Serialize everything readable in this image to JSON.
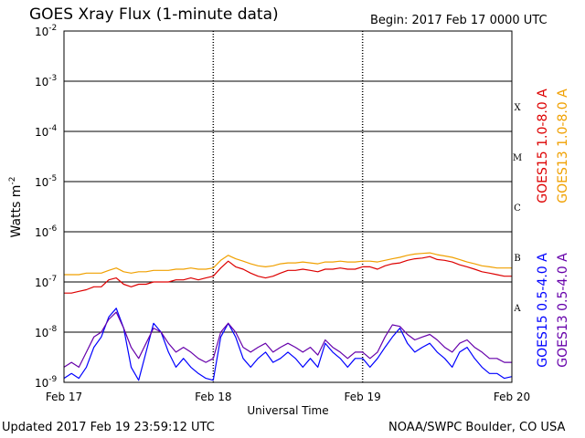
{
  "header": {
    "title": "GOES Xray Flux (1-minute data)",
    "begin": "Begin:  2017 Feb 17 0000 UTC"
  },
  "footer": {
    "updated": "Updated 2017 Feb 19 23:59:12 UTC",
    "credit": "NOAA/SWPC Boulder, CO USA"
  },
  "colors": {
    "goes15_long": "#dd0000",
    "goes13_long": "#f0a000",
    "goes15_short": "#0000ff",
    "goes13_short": "#6600aa"
  },
  "chart_data": {
    "type": "line",
    "x_ticks": [
      "Feb 17",
      "Feb 18",
      "Feb 19",
      "Feb 20"
    ],
    "xlabel": "Universal Time",
    "ylabel": "Watts m",
    "ylabel_sup": "-2",
    "y_scale": "log",
    "ylim": [
      1e-09,
      0.01
    ],
    "y_ticks": [
      {
        "base": "10",
        "exp": "-2"
      },
      {
        "base": "10",
        "exp": "-3"
      },
      {
        "base": "10",
        "exp": "-4"
      },
      {
        "base": "10",
        "exp": "-5"
      },
      {
        "base": "10",
        "exp": "-6"
      },
      {
        "base": "10",
        "exp": "-7"
      },
      {
        "base": "10",
        "exp": "-8"
      },
      {
        "base": "10",
        "exp": "-9"
      }
    ],
    "flare_classes": [
      "X",
      "M",
      "C",
      "B",
      "A"
    ],
    "series": [
      {
        "name": "GOES15 1.0-8.0 A",
        "color": "#dd0000",
        "x": [
          0,
          0.05,
          0.1,
          0.15,
          0.2,
          0.25,
          0.3,
          0.35,
          0.4,
          0.45,
          0.5,
          0.55,
          0.6,
          0.65,
          0.7,
          0.75,
          0.8,
          0.85,
          0.9,
          0.95,
          1.0,
          1.05,
          1.1,
          1.15,
          1.2,
          1.25,
          1.3,
          1.35,
          1.4,
          1.45,
          1.5,
          1.55,
          1.6,
          1.65,
          1.7,
          1.75,
          1.8,
          1.85,
          1.9,
          1.95,
          2.0,
          2.05,
          2.1,
          2.15,
          2.2,
          2.25,
          2.3,
          2.35,
          2.4,
          2.45,
          2.5,
          2.55,
          2.6,
          2.65,
          2.7,
          2.75,
          2.8,
          2.85,
          2.9,
          2.95,
          3.0
        ],
        "y": [
          6e-08,
          6e-08,
          6.5e-08,
          7e-08,
          8e-08,
          8e-08,
          1.1e-07,
          1.2e-07,
          9e-08,
          8e-08,
          9e-08,
          9e-08,
          1e-07,
          1e-07,
          1e-07,
          1.1e-07,
          1.1e-07,
          1.2e-07,
          1.1e-07,
          1.2e-07,
          1.3e-07,
          1.9e-07,
          2.6e-07,
          2e-07,
          1.8e-07,
          1.5e-07,
          1.3e-07,
          1.2e-07,
          1.3e-07,
          1.5e-07,
          1.7e-07,
          1.7e-07,
          1.8e-07,
          1.7e-07,
          1.6e-07,
          1.8e-07,
          1.8e-07,
          1.9e-07,
          1.8e-07,
          1.8e-07,
          2e-07,
          2e-07,
          1.8e-07,
          2.1e-07,
          2.3e-07,
          2.4e-07,
          2.7e-07,
          2.9e-07,
          3e-07,
          3.2e-07,
          2.8e-07,
          2.7e-07,
          2.5e-07,
          2.2e-07,
          2e-07,
          1.8e-07,
          1.6e-07,
          1.5e-07,
          1.4e-07,
          1.3e-07,
          1.3e-07
        ]
      },
      {
        "name": "GOES13 1.0-8.0 A",
        "color": "#f0a000",
        "x": [
          0,
          0.05,
          0.1,
          0.15,
          0.2,
          0.25,
          0.3,
          0.35,
          0.4,
          0.45,
          0.5,
          0.55,
          0.6,
          0.65,
          0.7,
          0.75,
          0.8,
          0.85,
          0.9,
          0.95,
          1.0,
          1.05,
          1.1,
          1.15,
          1.2,
          1.25,
          1.3,
          1.35,
          1.4,
          1.45,
          1.5,
          1.55,
          1.6,
          1.65,
          1.7,
          1.75,
          1.8,
          1.85,
          1.9,
          1.95,
          2.0,
          2.05,
          2.1,
          2.15,
          2.2,
          2.25,
          2.3,
          2.35,
          2.4,
          2.45,
          2.5,
          2.55,
          2.6,
          2.65,
          2.7,
          2.75,
          2.8,
          2.85,
          2.9,
          2.95,
          3.0
        ],
        "y": [
          1.4e-07,
          1.4e-07,
          1.4e-07,
          1.5e-07,
          1.5e-07,
          1.5e-07,
          1.7e-07,
          1.9e-07,
          1.6e-07,
          1.5e-07,
          1.6e-07,
          1.6e-07,
          1.7e-07,
          1.7e-07,
          1.7e-07,
          1.8e-07,
          1.8e-07,
          1.9e-07,
          1.8e-07,
          1.8e-07,
          1.9e-07,
          2.7e-07,
          3.4e-07,
          2.9e-07,
          2.6e-07,
          2.3e-07,
          2.1e-07,
          2e-07,
          2.1e-07,
          2.3e-07,
          2.4e-07,
          2.4e-07,
          2.5e-07,
          2.4e-07,
          2.3e-07,
          2.5e-07,
          2.5e-07,
          2.6e-07,
          2.5e-07,
          2.5e-07,
          2.6e-07,
          2.6e-07,
          2.5e-07,
          2.7e-07,
          2.9e-07,
          3.1e-07,
          3.4e-07,
          3.6e-07,
          3.7e-07,
          3.8e-07,
          3.5e-07,
          3.3e-07,
          3.1e-07,
          2.8e-07,
          2.5e-07,
          2.3e-07,
          2.1e-07,
          2e-07,
          1.9e-07,
          1.9e-07,
          1.9e-07
        ]
      },
      {
        "name": "GOES15 0.5-4.0 A",
        "color": "#0000ff",
        "x": [
          0,
          0.05,
          0.1,
          0.15,
          0.2,
          0.25,
          0.3,
          0.35,
          0.4,
          0.45,
          0.5,
          0.55,
          0.6,
          0.65,
          0.7,
          0.75,
          0.8,
          0.85,
          0.9,
          0.95,
          1.0,
          1.05,
          1.1,
          1.15,
          1.2,
          1.25,
          1.3,
          1.35,
          1.4,
          1.45,
          1.5,
          1.55,
          1.6,
          1.65,
          1.7,
          1.75,
          1.8,
          1.85,
          1.9,
          1.95,
          2.0,
          2.05,
          2.1,
          2.15,
          2.2,
          2.25,
          2.3,
          2.35,
          2.4,
          2.45,
          2.5,
          2.55,
          2.6,
          2.65,
          2.7,
          2.75,
          2.8,
          2.85,
          2.9,
          2.95,
          3.0
        ],
        "y": [
          1.2e-09,
          1.5e-09,
          1.2e-09,
          2e-09,
          5e-09,
          8e-09,
          2e-08,
          3e-08,
          1.2e-08,
          2e-09,
          1.1e-09,
          4e-09,
          1.5e-08,
          1e-08,
          4e-09,
          2e-09,
          3e-09,
          2e-09,
          1.5e-09,
          1.2e-09,
          1.1e-09,
          8e-09,
          1.5e-08,
          8e-09,
          3e-09,
          2e-09,
          3e-09,
          4e-09,
          2.5e-09,
          3e-09,
          4e-09,
          3e-09,
          2e-09,
          3e-09,
          2e-09,
          6e-09,
          4e-09,
          3e-09,
          2e-09,
          3e-09,
          3e-09,
          2e-09,
          3e-09,
          5e-09,
          8e-09,
          1.2e-08,
          6e-09,
          4e-09,
          5e-09,
          6e-09,
          4e-09,
          3e-09,
          2e-09,
          4e-09,
          5e-09,
          3e-09,
          2e-09,
          1.5e-09,
          1.5e-09,
          1.2e-09,
          1.3e-09
        ]
      },
      {
        "name": "GOES13 0.5-4.0 A",
        "color": "#6600aa",
        "x": [
          0,
          0.05,
          0.1,
          0.15,
          0.2,
          0.25,
          0.3,
          0.35,
          0.4,
          0.45,
          0.5,
          0.55,
          0.6,
          0.65,
          0.7,
          0.75,
          0.8,
          0.85,
          0.9,
          0.95,
          1.0,
          1.05,
          1.1,
          1.15,
          1.2,
          1.25,
          1.3,
          1.35,
          1.4,
          1.45,
          1.5,
          1.55,
          1.6,
          1.65,
          1.7,
          1.75,
          1.8,
          1.85,
          1.9,
          1.95,
          2.0,
          2.05,
          2.1,
          2.15,
          2.2,
          2.25,
          2.3,
          2.35,
          2.4,
          2.45,
          2.5,
          2.55,
          2.6,
          2.65,
          2.7,
          2.75,
          2.8,
          2.85,
          2.9,
          2.95,
          3.0
        ],
        "y": [
          2e-09,
          2.5e-09,
          2e-09,
          4e-09,
          8e-09,
          1e-08,
          1.8e-08,
          2.5e-08,
          1.2e-08,
          5e-09,
          3e-09,
          6e-09,
          1.2e-08,
          1e-08,
          6e-09,
          4e-09,
          5e-09,
          4e-09,
          3e-09,
          2.5e-09,
          3e-09,
          1e-08,
          1.5e-08,
          1e-08,
          5e-09,
          4e-09,
          5e-09,
          6e-09,
          4e-09,
          5e-09,
          6e-09,
          5e-09,
          4e-09,
          5e-09,
          3.5e-09,
          7e-09,
          5e-09,
          4e-09,
          3e-09,
          4e-09,
          4e-09,
          3e-09,
          4e-09,
          8e-09,
          1.4e-08,
          1.3e-08,
          9e-09,
          7e-09,
          8e-09,
          9e-09,
          7e-09,
          5e-09,
          4e-09,
          6e-09,
          7e-09,
          5e-09,
          4e-09,
          3e-09,
          3e-09,
          2.5e-09,
          2.5e-09
        ]
      }
    ]
  }
}
